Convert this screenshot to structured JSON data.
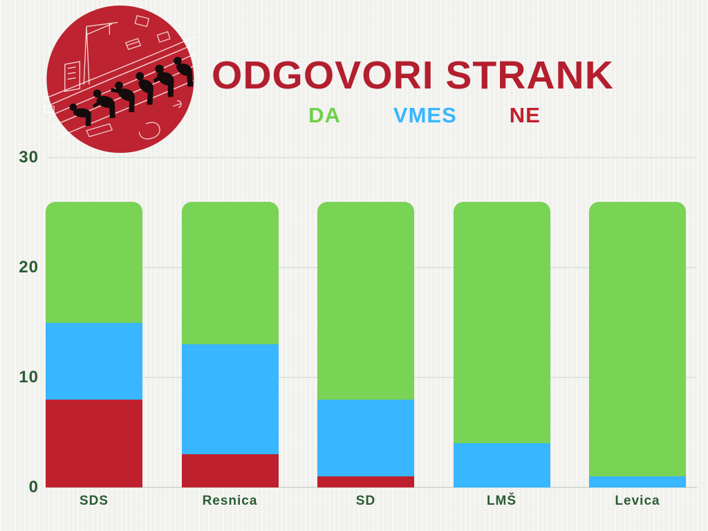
{
  "header": {
    "title": "ODGOVORI STRANK",
    "title_color": "#b31f2e"
  },
  "legend": {
    "items": [
      {
        "label": "DA",
        "color": "#6fd149"
      },
      {
        "label": "VMES",
        "color": "#38b6ff"
      },
      {
        "label": "NE",
        "color": "#c1202e"
      }
    ]
  },
  "logo": {
    "description": "red circle illustration with black figure silhouettes",
    "circle_color": "#bd2330"
  },
  "chart_data": {
    "type": "bar",
    "stacked": true,
    "title": "ODGOVORI STRANK",
    "categories": [
      "SDS",
      "Resnica",
      "SD",
      "LMŠ",
      "Levica"
    ],
    "series": [
      {
        "name": "NE",
        "color": "#bf202d",
        "values": [
          8,
          3,
          1,
          0,
          0
        ]
      },
      {
        "name": "VMES",
        "color": "#38b6ff",
        "values": [
          7,
          10,
          7,
          4,
          1
        ]
      },
      {
        "name": "DA",
        "color": "#79d355",
        "values": [
          11,
          13,
          18,
          22,
          25
        ]
      }
    ],
    "ylim": [
      0,
      30
    ],
    "yticks": [
      0,
      10,
      20,
      30
    ],
    "grid": true,
    "legend_position": "top",
    "axis_text_color": "#2a5c33",
    "gridline_color": "#dde4da"
  }
}
